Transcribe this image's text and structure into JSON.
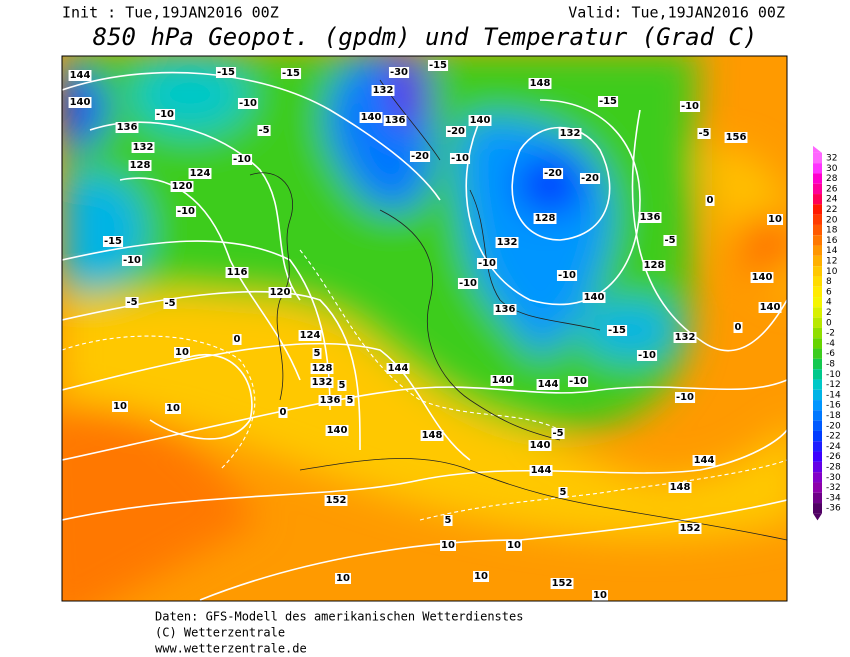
{
  "header": {
    "init": "Init : Tue,19JAN2016 00Z",
    "valid": "Valid: Tue,19JAN2016 00Z",
    "title": "850 hPa Geopot. (gpdm) und Temperatur (Grad C)"
  },
  "colorbar": {
    "ticks": [
      32,
      30,
      28,
      26,
      24,
      22,
      20,
      18,
      16,
      14,
      12,
      10,
      8,
      6,
      4,
      2,
      0,
      -2,
      -4,
      -6,
      -8,
      -10,
      -12,
      -14,
      -16,
      -18,
      -20,
      -22,
      -24,
      -26,
      -28,
      -30,
      -32,
      -34,
      -36
    ],
    "colors": [
      "#ff66ff",
      "#ff33ff",
      "#ff00cc",
      "#ff0099",
      "#ff0055",
      "#ff1a00",
      "#ff3c00",
      "#ff5a00",
      "#ff7800",
      "#ff9600",
      "#ffb000",
      "#ffc800",
      "#ffdc00",
      "#ffeb00",
      "#f5f500",
      "#d8f000",
      "#b8e800",
      "#90de00",
      "#66d400",
      "#3ccc1e",
      "#14c850",
      "#00c88c",
      "#00c8c8",
      "#00b4e6",
      "#0096ff",
      "#0078ff",
      "#005aff",
      "#003cff",
      "#1e1eff",
      "#3c00ff",
      "#6400e6",
      "#8200c8",
      "#8c00aa",
      "#6e0088",
      "#500064"
    ]
  },
  "geopotential_labels": [
    144,
    140,
    136,
    132,
    128,
    120,
    124,
    116,
    120,
    124,
    128,
    132,
    136,
    140,
    144,
    148,
    152,
    140,
    136,
    132,
    148,
    140,
    132,
    128,
    132,
    136,
    140,
    144,
    140,
    140,
    144,
    148,
    144,
    152,
    152,
    156,
    132,
    136,
    128,
    140,
    140
  ],
  "temperature_labels": [
    -15,
    -15,
    -10,
    -10,
    -5,
    -10,
    -10,
    -15,
    -10,
    -5,
    -5,
    10,
    10,
    10,
    -30,
    -15,
    -20,
    -20,
    -10,
    -20,
    -20,
    -15,
    -10,
    -5,
    -15,
    -10,
    -10,
    -5,
    -10,
    -10,
    -10,
    5,
    5,
    5,
    0,
    0,
    10,
    10,
    10,
    10,
    10,
    -5,
    -10,
    5,
    5,
    10,
    0,
    0
  ],
  "footer": {
    "line1": "Daten: GFS-Modell des amerikanischen Wetterdienstes",
    "line2": "(C) Wetterzentrale",
    "line3": "www.wetterzentrale.de"
  }
}
